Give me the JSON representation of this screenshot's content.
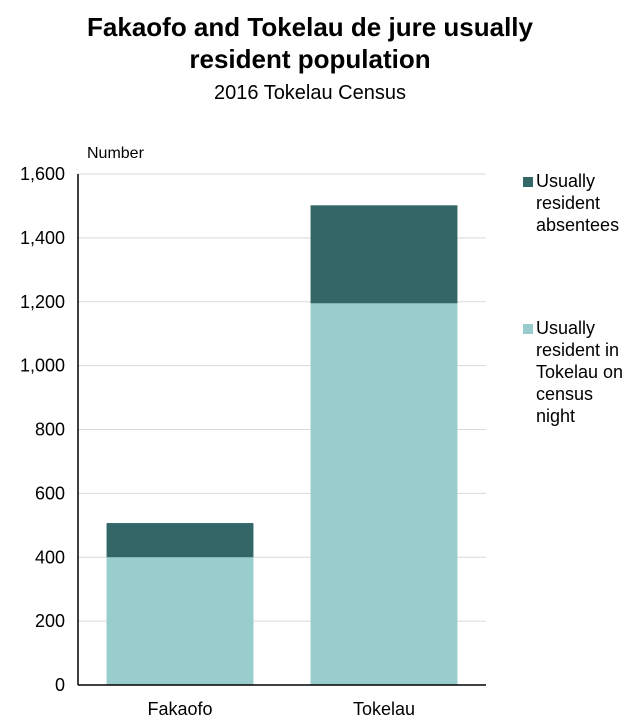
{
  "chart_data": {
    "type": "bar",
    "stacked": true,
    "title_line1": "Fakaofo and Tokelau de jure usually",
    "title_line2": "resident population",
    "subtitle": "2016 Tokelau Census",
    "ylabel": "Number",
    "xlabel": "",
    "categories": [
      "Fakaofo",
      "Tokelau"
    ],
    "series": [
      {
        "name": "Usually resident in Tokelau on census night",
        "values": [
          400,
          1195
        ],
        "color": "#99cccc"
      },
      {
        "name": "Usually resident absentees",
        "values": [
          107,
          307
        ],
        "color": "#336666"
      }
    ],
    "ylim": [
      0,
      1600
    ],
    "yticks": [
      "0",
      "200",
      "400",
      "600",
      "800",
      "1,000",
      "1,200",
      "1,400",
      "1,600"
    ],
    "grid": true,
    "legend_position": "right",
    "legend": {
      "absentees_lines": [
        "Usually",
        "resident",
        "absentees"
      ],
      "present_lines": [
        "Usually",
        "resident in",
        "Tokelau on",
        "census",
        "night"
      ]
    }
  }
}
